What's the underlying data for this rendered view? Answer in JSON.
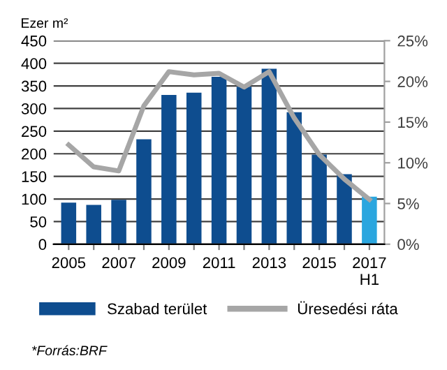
{
  "chart_data": {
    "type": "bar",
    "ylabel": "Ezer m²",
    "categories": [
      "2005",
      null,
      "2007",
      null,
      "2009",
      null,
      "2011",
      null,
      "2013",
      null,
      "2015",
      null,
      "2017\nH1"
    ],
    "series": [
      {
        "name": "Szabad terület",
        "colors": [
          "#0e4d8f",
          "#0e4d8f",
          "#0e4d8f",
          "#0e4d8f",
          "#0e4d8f",
          "#0e4d8f",
          "#0e4d8f",
          "#0e4d8f",
          "#0e4d8f",
          "#0e4d8f",
          "#0e4d8f",
          "#0e4d8f",
          "#2aa6df"
        ],
        "color": "#0e4d8f",
        "values": [
          92,
          87,
          98,
          232,
          330,
          335,
          370,
          348,
          388,
          292,
          198,
          155,
          105
        ]
      },
      {
        "name": "Üresedési ráta",
        "type": "line",
        "axis": "y2",
        "color": "#a6a6a6",
        "values": [
          12.2,
          9.5,
          9.0,
          17,
          21.2,
          20.8,
          21,
          19.3,
          21.2,
          15.5,
          11,
          8,
          5.5
        ]
      }
    ],
    "ylim": [
      0,
      450
    ],
    "yticks": [
      0,
      50,
      100,
      150,
      200,
      250,
      300,
      350,
      400,
      450
    ],
    "y2lim": [
      0,
      25
    ],
    "y2ticks": [
      {
        "value": 0,
        "label": "0%"
      },
      {
        "value": 5,
        "label": "5%"
      },
      {
        "value": 10,
        "label": "10%"
      },
      {
        "value": 15,
        "label": "15%"
      },
      {
        "value": 20,
        "label": "20%"
      },
      {
        "value": 25,
        "label": "25%"
      }
    ],
    "grid": "y",
    "legend": "bottom",
    "marker": "none",
    "line_style": "solid",
    "annotations": [
      "*Forrás:BRF"
    ]
  }
}
